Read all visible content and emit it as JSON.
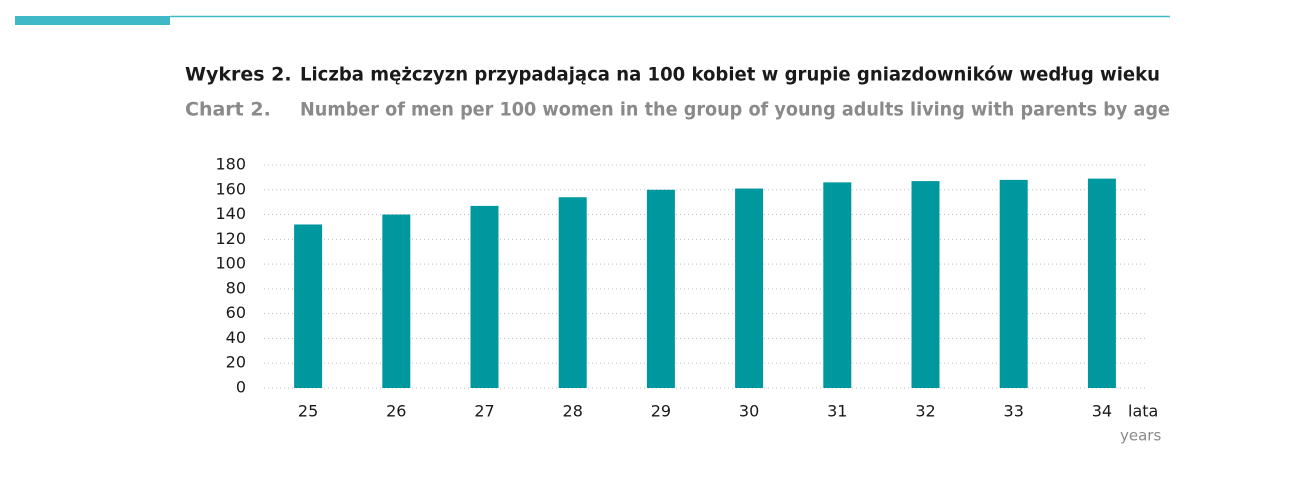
{
  "chart_data": {
    "type": "bar",
    "title_label": "Wykres 2.",
    "title": "Liczba mężczyzn przypadająca na 100 kobiet w grupie gniazdowników według wieku",
    "subtitle_label": "Chart 2.",
    "subtitle": "Number of men per 100 women in the group of young adults living with parents by age",
    "x_label": "lata",
    "x_label_en": "years",
    "categories": [
      "25",
      "26",
      "27",
      "28",
      "29",
      "30",
      "31",
      "32",
      "33",
      "34"
    ],
    "values": [
      132,
      140,
      147,
      154,
      160,
      161,
      166,
      167,
      168,
      169
    ],
    "color": "#00989f",
    "ylim": [
      0,
      180
    ],
    "yticks": [
      0,
      20,
      40,
      60,
      80,
      100,
      120,
      140,
      160,
      180
    ],
    "grid": true
  }
}
